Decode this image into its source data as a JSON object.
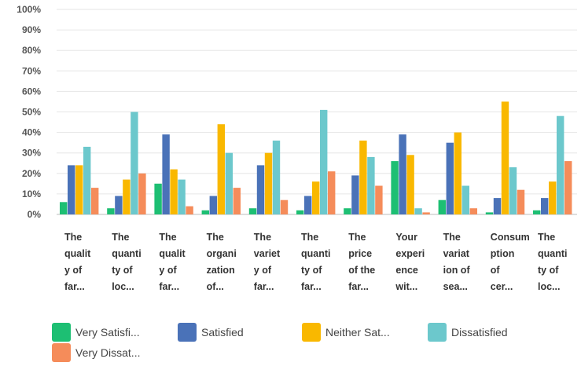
{
  "chart_data": {
    "type": "bar",
    "title": "",
    "xlabel": "",
    "ylabel": "",
    "ylim": [
      0,
      100
    ],
    "y_ticks": [
      "0%",
      "10%",
      "20%",
      "30%",
      "40%",
      "50%",
      "60%",
      "70%",
      "80%",
      "90%",
      "100%"
    ],
    "grid": true,
    "legend_position": "bottom",
    "categories": [
      "The\nqualit\ny of\nfar...",
      "The\nquanti\nty of\nloc...",
      "The\nqualit\ny of\nfar...",
      "The\norgani\nzation\nof...",
      "The\nvariet\ny of\nfar...",
      "The\nquanti\nty of\nfar...",
      "The\nprice\nof the\nfar...",
      "Your\nexperi\nence\nwit...",
      "The\nvariat\nion of\nsea...",
      "Consum\nption\nof\ncer...",
      "The\nquanti\nty of\nloc..."
    ],
    "series": [
      {
        "name": "Very Satisfi...",
        "color": "#1dbf73",
        "values": [
          6,
          3,
          15,
          2,
          3,
          2,
          3,
          26,
          7,
          1,
          2
        ]
      },
      {
        "name": "Satisfied",
        "color": "#4a72b8",
        "values": [
          24,
          9,
          39,
          9,
          24,
          9,
          19,
          39,
          35,
          8,
          8
        ]
      },
      {
        "name": "Neither Sat...",
        "color": "#f9b800",
        "values": [
          24,
          17,
          22,
          44,
          30,
          16,
          36,
          29,
          40,
          55,
          16
        ]
      },
      {
        "name": "Dissatisfied",
        "color": "#6cc8cc",
        "values": [
          33,
          50,
          17,
          30,
          36,
          51,
          28,
          3,
          14,
          23,
          48
        ]
      },
      {
        "name": "Very Dissat...",
        "color": "#f58c5a",
        "values": [
          13,
          20,
          4,
          13,
          7,
          21,
          14,
          1,
          3,
          12,
          26
        ]
      }
    ]
  }
}
